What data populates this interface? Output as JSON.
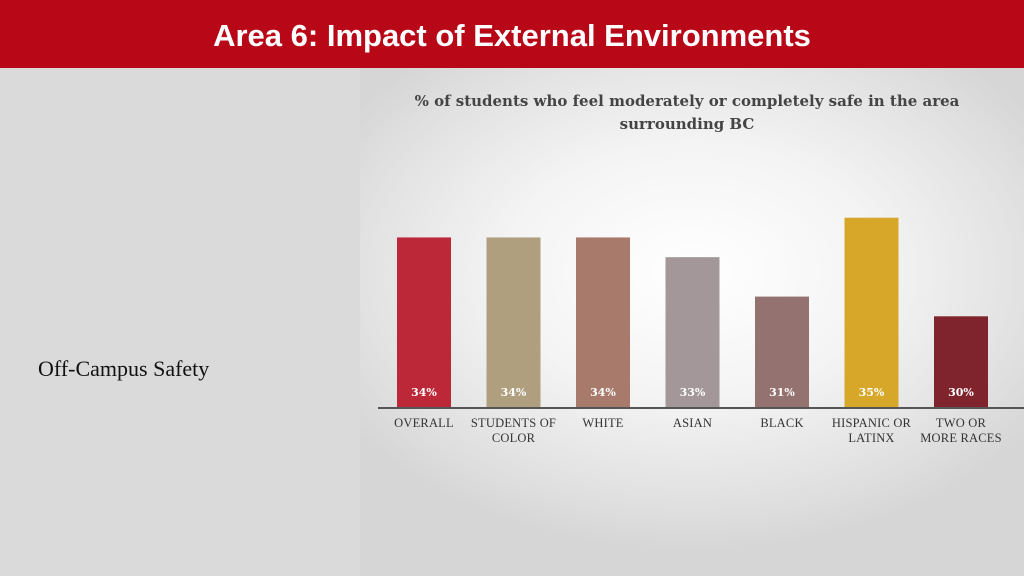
{
  "header": {
    "title": "Area 6: Impact of External Environments"
  },
  "left_panel": {
    "label": "Off-Campus Safety"
  },
  "colors": {
    "header_bg": "#b80818",
    "bars": [
      "#bc2837",
      "#b09f7f",
      "#a77a6c",
      "#a39799",
      "#947270",
      "#d6a728",
      "#7f242c"
    ]
  },
  "chart_data": {
    "type": "bar",
    "title": "% of students who feel moderately or completely safe in the area surrounding BC",
    "categories": [
      [
        "OVERALL"
      ],
      [
        "STUDENTS OF",
        "COLOR"
      ],
      [
        "WHITE"
      ],
      [
        "ASIAN"
      ],
      [
        "BLACK"
      ],
      [
        "HISPANIC OR",
        "LATINX"
      ],
      [
        "TWO OR",
        "MORE RACES"
      ]
    ],
    "values": [
      34,
      34,
      34,
      33,
      31,
      35,
      30
    ],
    "value_labels": [
      "34%",
      "34%",
      "34%",
      "33%",
      "31%",
      "35%",
      "30%"
    ],
    "ylim": [
      25.35,
      36
    ],
    "xlabel": "",
    "ylabel": ""
  }
}
